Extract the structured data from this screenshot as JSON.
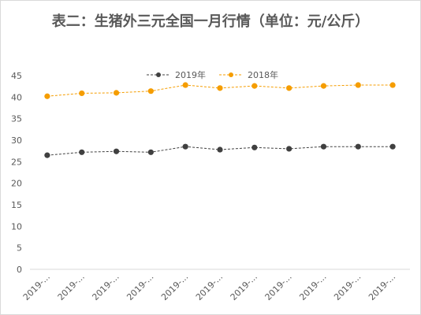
{
  "chart_data": {
    "type": "line",
    "title": "表二：生猪外三元全国一月行情（单位：元/公斤）",
    "categories": [
      "2019-...",
      "2019-...",
      "2019-...",
      "2019-...",
      "2019-...",
      "2019-...",
      "2019-...",
      "2019-...",
      "2019-...",
      "2019-...",
      "2019-..."
    ],
    "series": [
      {
        "name": "2019年",
        "color": "#404040",
        "style": "dashed",
        "values": [
          26.5,
          27.2,
          27.4,
          27.2,
          28.5,
          27.8,
          28.3,
          28.0,
          28.5,
          28.5,
          28.5
        ]
      },
      {
        "name": "2018年",
        "color": "#f59d00",
        "style": "dashed",
        "values": [
          40.2,
          40.9,
          41.0,
          41.4,
          42.8,
          42.1,
          42.6,
          42.1,
          42.6,
          42.8,
          42.8
        ]
      }
    ],
    "ylim": [
      0,
      45
    ],
    "yticks": [
      0,
      5,
      10,
      15,
      20,
      25,
      30,
      35,
      40,
      45
    ],
    "grid": false,
    "legend": "top"
  }
}
